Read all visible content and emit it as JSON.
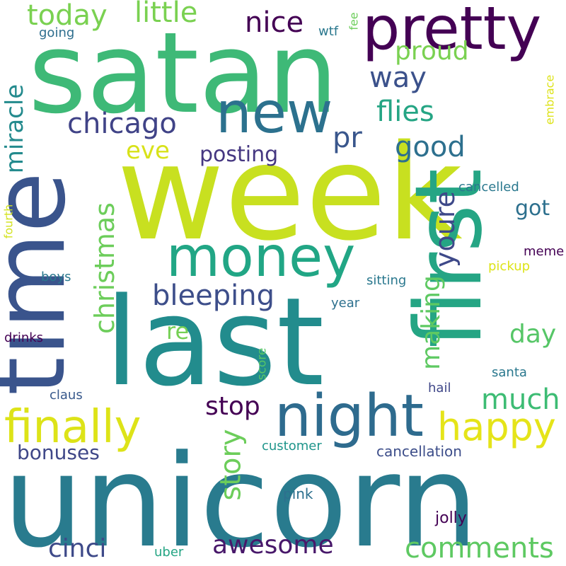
{
  "words": [
    {
      "id": "week",
      "text": "week",
      "color": "#c8e020"
    },
    {
      "id": "unicorn",
      "text": "unicorn",
      "color": "#297b8e"
    },
    {
      "id": "satan",
      "text": "satan",
      "color": "#3eb977"
    },
    {
      "id": "last",
      "text": "last",
      "color": "#228c8d"
    },
    {
      "id": "time",
      "text": "time",
      "color": "#3a548c"
    },
    {
      "id": "first",
      "text": "first",
      "color": "#25a584"
    },
    {
      "id": "pretty",
      "text": "pretty",
      "color": "#440154"
    },
    {
      "id": "new",
      "text": "new",
      "color": "#2c718e"
    },
    {
      "id": "money",
      "text": "money",
      "color": "#21a685"
    },
    {
      "id": "night",
      "text": "night",
      "color": "#2e6b8e"
    },
    {
      "id": "finally",
      "text": "finally",
      "color": "#dde318"
    },
    {
      "id": "happy",
      "text": "happy",
      "color": "#e5e419"
    },
    {
      "id": "today",
      "text": "today",
      "color": "#7ad151"
    },
    {
      "id": "little",
      "text": "little",
      "color": "#7ad151"
    },
    {
      "id": "nice",
      "text": "nice",
      "color": "#440154"
    },
    {
      "id": "proud",
      "text": "proud",
      "color": "#7ad151"
    },
    {
      "id": "way",
      "text": "way",
      "color": "#3b518b"
    },
    {
      "id": "flies",
      "text": "flies",
      "color": "#25a584"
    },
    {
      "id": "chicago",
      "text": "chicago",
      "color": "#404387"
    },
    {
      "id": "pr",
      "text": "pr",
      "color": "#39568c"
    },
    {
      "id": "good",
      "text": "good",
      "color": "#2d708e"
    },
    {
      "id": "eve",
      "text": "eve",
      "color": "#d8e219"
    },
    {
      "id": "posting",
      "text": "posting",
      "color": "#453781"
    },
    {
      "id": "miracle",
      "text": "miracle",
      "color": "#238a8d"
    },
    {
      "id": "christmas",
      "text": "christmas",
      "color": "#6ccd5a"
    },
    {
      "id": "youre",
      "text": "youre",
      "color": "#3e4989"
    },
    {
      "id": "got",
      "text": "got",
      "color": "#2d708e"
    },
    {
      "id": "bleeping",
      "text": "bleeping",
      "color": "#3d4e8a"
    },
    {
      "id": "making",
      "text": "making",
      "color": "#5ec962"
    },
    {
      "id": "re",
      "text": "re",
      "color": "#75d054"
    },
    {
      "id": "day",
      "text": "day",
      "color": "#56c667"
    },
    {
      "id": "stop",
      "text": "stop",
      "color": "#440154"
    },
    {
      "id": "much",
      "text": "much",
      "color": "#3dbc74"
    },
    {
      "id": "story",
      "text": "story",
      "color": "#6ccd5a"
    },
    {
      "id": "bonuses",
      "text": "bonuses",
      "color": "#3f4788"
    },
    {
      "id": "cinci",
      "text": "cinci",
      "color": "#3e4a89"
    },
    {
      "id": "awesome",
      "text": "awesome",
      "color": "#48186a"
    },
    {
      "id": "comments",
      "text": "comments",
      "color": "#5ec962"
    },
    {
      "id": "customer",
      "text": "customer",
      "color": "#1f958b"
    },
    {
      "id": "cancellation",
      "text": "cancellation",
      "color": "#3d4e8a"
    },
    {
      "id": "pink",
      "text": "pink",
      "color": "#2d708e"
    },
    {
      "id": "jolly",
      "text": "jolly",
      "color": "#440154"
    },
    {
      "id": "uber",
      "text": "uber",
      "color": "#25a584"
    },
    {
      "id": "santa",
      "text": "santa",
      "color": "#2a788e"
    },
    {
      "id": "hail",
      "text": "hail",
      "color": "#3f4788"
    },
    {
      "id": "claus",
      "text": "claus",
      "color": "#38598c"
    },
    {
      "id": "score",
      "text": "score",
      "color": "#56c667"
    },
    {
      "id": "year",
      "text": "year",
      "color": "#2d708e"
    },
    {
      "id": "sitting",
      "text": "sitting",
      "color": "#2a788e"
    },
    {
      "id": "drinks",
      "text": "drinks",
      "color": "#440154"
    },
    {
      "id": "boys",
      "text": "boys",
      "color": "#2a788e"
    },
    {
      "id": "fourth",
      "text": "fourth",
      "color": "#d2e21b"
    },
    {
      "id": "going",
      "text": "going",
      "color": "#2e6e8e"
    },
    {
      "id": "wtf",
      "text": "wtf",
      "color": "#2a788e"
    },
    {
      "id": "fee",
      "text": "fee",
      "color": "#6ccd5a"
    },
    {
      "id": "embrace",
      "text": "embrace",
      "color": "#dde318"
    },
    {
      "id": "cancelled",
      "text": "cancelled",
      "color": "#2a788e"
    },
    {
      "id": "meme",
      "text": "meme",
      "color": "#440154"
    },
    {
      "id": "pickup",
      "text": "pickup",
      "color": "#dde318"
    }
  ]
}
